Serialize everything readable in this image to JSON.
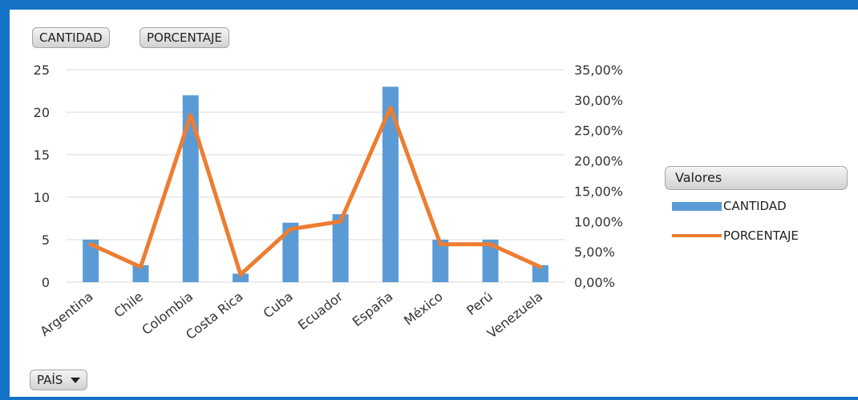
{
  "field_buttons": {
    "cantidad": "CANTIDAD",
    "porcentaje": "PORCENTAJE",
    "pais": "PAÍS"
  },
  "legend": {
    "title": "Valores",
    "items": [
      {
        "label": "CANTIDAD",
        "color": "#5b9bd5"
      },
      {
        "label": "PORCENTAJE",
        "color": "#ed7d31"
      }
    ]
  },
  "chart_data": {
    "type": "bar",
    "categories": [
      "Argentina",
      "Chile",
      "Colombia",
      "Costa Rica",
      "Cuba",
      "Ecuador",
      "España",
      "México",
      "Perú",
      "Venezuela"
    ],
    "series": [
      {
        "name": "CANTIDAD",
        "type": "bar",
        "axis": "left",
        "color": "#5b9bd5",
        "values": [
          5,
          2,
          22,
          1,
          7,
          8,
          23,
          5,
          5,
          2
        ]
      },
      {
        "name": "PORCENTAJE",
        "type": "line",
        "axis": "right",
        "color": "#ed7d31",
        "values": [
          0.0625,
          0.025,
          0.275,
          0.0125,
          0.0875,
          0.1,
          0.2875,
          0.0625,
          0.0625,
          0.025
        ]
      }
    ],
    "ylim": [
      0,
      25
    ],
    "y_ticks": [
      "0",
      "5",
      "10",
      "15",
      "20",
      "25"
    ],
    "y2lim": [
      0,
      0.35
    ],
    "y2_ticks": [
      "0,00%",
      "5,00%",
      "10,00%",
      "15,00%",
      "20,00%",
      "25,00%",
      "30,00%",
      "35,00%"
    ],
    "grid": true,
    "legend_position": "right"
  }
}
